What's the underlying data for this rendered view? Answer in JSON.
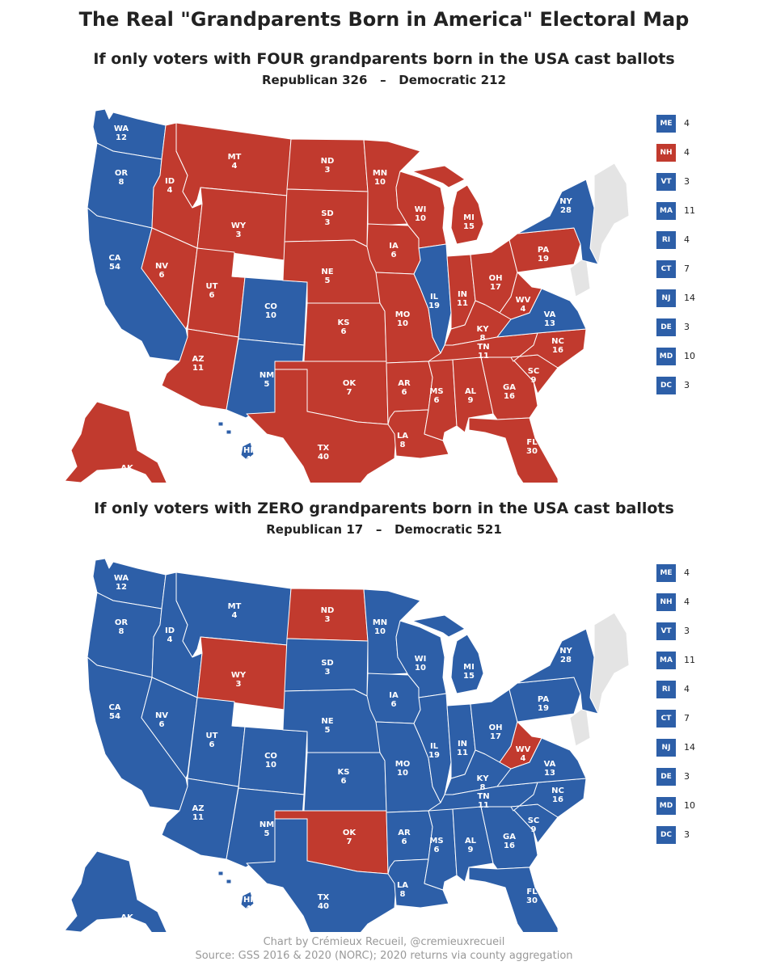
{
  "title": "The Real \"Grandparents Born in America\" Electoral Map",
  "colors": {
    "republican": "#c13a2e",
    "democratic": "#2d5fa8",
    "none": "#e4e4e4",
    "border": "#ffffff"
  },
  "maps": [
    {
      "title": "If only voters with FOUR grandparents born in the USA cast ballots",
      "totals": {
        "republican_label": "Republican",
        "republican": "326",
        "separator": "–",
        "democratic_label": "Democratic",
        "democratic": "212"
      },
      "states": [
        {
          "abbr": "WA",
          "ev": "12",
          "party": "D"
        },
        {
          "abbr": "OR",
          "ev": "8",
          "party": "D"
        },
        {
          "abbr": "CA",
          "ev": "54",
          "party": "D"
        },
        {
          "abbr": "ID",
          "ev": "4",
          "party": "R"
        },
        {
          "abbr": "NV",
          "ev": "6",
          "party": "R"
        },
        {
          "abbr": "MT",
          "ev": "4",
          "party": "R"
        },
        {
          "abbr": "WY",
          "ev": "3",
          "party": "R"
        },
        {
          "abbr": "UT",
          "ev": "6",
          "party": "R"
        },
        {
          "abbr": "AZ",
          "ev": "11",
          "party": "R"
        },
        {
          "abbr": "CO",
          "ev": "10",
          "party": "D"
        },
        {
          "abbr": "NM",
          "ev": "5",
          "party": "D"
        },
        {
          "abbr": "ND",
          "ev": "3",
          "party": "R"
        },
        {
          "abbr": "SD",
          "ev": "3",
          "party": "R"
        },
        {
          "abbr": "NE",
          "ev": "5",
          "party": "R"
        },
        {
          "abbr": "KS",
          "ev": "6",
          "party": "R"
        },
        {
          "abbr": "OK",
          "ev": "7",
          "party": "R"
        },
        {
          "abbr": "TX",
          "ev": "40",
          "party": "R"
        },
        {
          "abbr": "MN",
          "ev": "10",
          "party": "R"
        },
        {
          "abbr": "IA",
          "ev": "6",
          "party": "R"
        },
        {
          "abbr": "MO",
          "ev": "10",
          "party": "R"
        },
        {
          "abbr": "AR",
          "ev": "6",
          "party": "R"
        },
        {
          "abbr": "LA",
          "ev": "8",
          "party": "R"
        },
        {
          "abbr": "WI",
          "ev": "10",
          "party": "R"
        },
        {
          "abbr": "MI",
          "ev": "15",
          "party": "R"
        },
        {
          "abbr": "IL",
          "ev": "19",
          "party": "D"
        },
        {
          "abbr": "IN",
          "ev": "11",
          "party": "R"
        },
        {
          "abbr": "OH",
          "ev": "17",
          "party": "R"
        },
        {
          "abbr": "KY",
          "ev": "8",
          "party": "R"
        },
        {
          "abbr": "TN",
          "ev": "11",
          "party": "R"
        },
        {
          "abbr": "MS",
          "ev": "6",
          "party": "R"
        },
        {
          "abbr": "AL",
          "ev": "9",
          "party": "R"
        },
        {
          "abbr": "GA",
          "ev": "16",
          "party": "R"
        },
        {
          "abbr": "FL",
          "ev": "30",
          "party": "R"
        },
        {
          "abbr": "SC",
          "ev": "9",
          "party": "R"
        },
        {
          "abbr": "NC",
          "ev": "16",
          "party": "R"
        },
        {
          "abbr": "VA",
          "ev": "13",
          "party": "D"
        },
        {
          "abbr": "WV",
          "ev": "4",
          "party": "R"
        },
        {
          "abbr": "PA",
          "ev": "19",
          "party": "R"
        },
        {
          "abbr": "NY",
          "ev": "28",
          "party": "D"
        },
        {
          "abbr": "AK",
          "ev": "3",
          "party": "R"
        },
        {
          "abbr": "HI",
          "ev": "4",
          "party": "D"
        }
      ],
      "legend": [
        {
          "abbr": "ME",
          "ev": "4",
          "party": "D"
        },
        {
          "abbr": "NH",
          "ev": "4",
          "party": "R"
        },
        {
          "abbr": "VT",
          "ev": "3",
          "party": "D"
        },
        {
          "abbr": "MA",
          "ev": "11",
          "party": "D"
        },
        {
          "abbr": "RI",
          "ev": "4",
          "party": "D"
        },
        {
          "abbr": "CT",
          "ev": "7",
          "party": "D"
        },
        {
          "abbr": "NJ",
          "ev": "14",
          "party": "D"
        },
        {
          "abbr": "DE",
          "ev": "3",
          "party": "D"
        },
        {
          "abbr": "MD",
          "ev": "10",
          "party": "D"
        },
        {
          "abbr": "DC",
          "ev": "3",
          "party": "D"
        }
      ]
    },
    {
      "title": "If only voters with ZERO grandparents born in the USA cast ballots",
      "totals": {
        "republican_label": "Republican",
        "republican": "17",
        "separator": "–",
        "democratic_label": "Democratic",
        "democratic": "521"
      },
      "states": [
        {
          "abbr": "WA",
          "ev": "12",
          "party": "D"
        },
        {
          "abbr": "OR",
          "ev": "8",
          "party": "D"
        },
        {
          "abbr": "CA",
          "ev": "54",
          "party": "D"
        },
        {
          "abbr": "ID",
          "ev": "4",
          "party": "D"
        },
        {
          "abbr": "NV",
          "ev": "6",
          "party": "D"
        },
        {
          "abbr": "MT",
          "ev": "4",
          "party": "D"
        },
        {
          "abbr": "WY",
          "ev": "3",
          "party": "R"
        },
        {
          "abbr": "UT",
          "ev": "6",
          "party": "D"
        },
        {
          "abbr": "AZ",
          "ev": "11",
          "party": "D"
        },
        {
          "abbr": "CO",
          "ev": "10",
          "party": "D"
        },
        {
          "abbr": "NM",
          "ev": "5",
          "party": "D"
        },
        {
          "abbr": "ND",
          "ev": "3",
          "party": "R"
        },
        {
          "abbr": "SD",
          "ev": "3",
          "party": "D"
        },
        {
          "abbr": "NE",
          "ev": "5",
          "party": "D"
        },
        {
          "abbr": "KS",
          "ev": "6",
          "party": "D"
        },
        {
          "abbr": "OK",
          "ev": "7",
          "party": "R"
        },
        {
          "abbr": "TX",
          "ev": "40",
          "party": "D"
        },
        {
          "abbr": "MN",
          "ev": "10",
          "party": "D"
        },
        {
          "abbr": "IA",
          "ev": "6",
          "party": "D"
        },
        {
          "abbr": "MO",
          "ev": "10",
          "party": "D"
        },
        {
          "abbr": "AR",
          "ev": "6",
          "party": "D"
        },
        {
          "abbr": "LA",
          "ev": "8",
          "party": "D"
        },
        {
          "abbr": "WI",
          "ev": "10",
          "party": "D"
        },
        {
          "abbr": "MI",
          "ev": "15",
          "party": "D"
        },
        {
          "abbr": "IL",
          "ev": "19",
          "party": "D"
        },
        {
          "abbr": "IN",
          "ev": "11",
          "party": "D"
        },
        {
          "abbr": "OH",
          "ev": "17",
          "party": "D"
        },
        {
          "abbr": "KY",
          "ev": "8",
          "party": "D"
        },
        {
          "abbr": "TN",
          "ev": "11",
          "party": "D"
        },
        {
          "abbr": "MS",
          "ev": "6",
          "party": "D"
        },
        {
          "abbr": "AL",
          "ev": "9",
          "party": "D"
        },
        {
          "abbr": "GA",
          "ev": "16",
          "party": "D"
        },
        {
          "abbr": "FL",
          "ev": "30",
          "party": "D"
        },
        {
          "abbr": "SC",
          "ev": "9",
          "party": "D"
        },
        {
          "abbr": "NC",
          "ev": "16",
          "party": "D"
        },
        {
          "abbr": "VA",
          "ev": "13",
          "party": "D"
        },
        {
          "abbr": "WV",
          "ev": "4",
          "party": "R"
        },
        {
          "abbr": "PA",
          "ev": "19",
          "party": "D"
        },
        {
          "abbr": "NY",
          "ev": "28",
          "party": "D"
        },
        {
          "abbr": "AK",
          "ev": "3",
          "party": "D"
        },
        {
          "abbr": "HI",
          "ev": "4",
          "party": "D"
        }
      ],
      "legend": [
        {
          "abbr": "ME",
          "ev": "4",
          "party": "D"
        },
        {
          "abbr": "NH",
          "ev": "4",
          "party": "D"
        },
        {
          "abbr": "VT",
          "ev": "3",
          "party": "D"
        },
        {
          "abbr": "MA",
          "ev": "11",
          "party": "D"
        },
        {
          "abbr": "RI",
          "ev": "4",
          "party": "D"
        },
        {
          "abbr": "CT",
          "ev": "7",
          "party": "D"
        },
        {
          "abbr": "NJ",
          "ev": "14",
          "party": "D"
        },
        {
          "abbr": "DE",
          "ev": "3",
          "party": "D"
        },
        {
          "abbr": "MD",
          "ev": "10",
          "party": "D"
        },
        {
          "abbr": "DC",
          "ev": "3",
          "party": "D"
        }
      ]
    }
  ],
  "footer": {
    "credit": "Chart by Crémieux Recueil, @cremieuxrecueil",
    "source": "Source: GSS 2016 & 2020 (NORC); 2020 returns via county aggregation"
  }
}
